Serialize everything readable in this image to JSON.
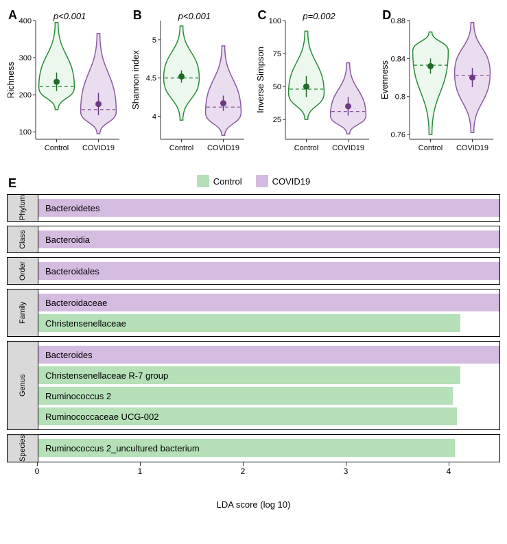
{
  "colors": {
    "control_stroke": "#2a8a3a",
    "control_fill": "#b5e0b8",
    "control_dot": "#1f6b28",
    "covid_stroke": "#8a5aa0",
    "covid_fill": "#d4bce0",
    "covid_dot": "#6b3a85",
    "axis": "#333333",
    "text": "#000000",
    "group_label_bg": "#d9d9d9"
  },
  "typography": {
    "panel_letter_size": 18,
    "axis_label_size": 13,
    "tick_size": 11,
    "pvalue_size": 13
  },
  "violins": [
    {
      "letter": "A",
      "ylabel": "Richness",
      "pvalue": "p<0.001",
      "ylim": [
        80,
        400
      ],
      "yticks": [
        100,
        200,
        300,
        400
      ],
      "categories": [
        "Control",
        "COVID19"
      ],
      "series": [
        {
          "mean": 235,
          "ci": 25,
          "median": 222,
          "range": [
            160,
            395
          ],
          "bulge": 220,
          "color_key": "control"
        },
        {
          "mean": 175,
          "ci": 30,
          "median": 160,
          "range": [
            95,
            365
          ],
          "bulge": 155,
          "color_key": "covid"
        }
      ]
    },
    {
      "letter": "B",
      "ylabel": "Shannon index",
      "pvalue": "p<0.001",
      "ylim": [
        3.7,
        5.25
      ],
      "yticks": [
        4.0,
        4.5,
        5.0
      ],
      "categories": [
        "Control",
        "COVID19"
      ],
      "series": [
        {
          "mean": 4.52,
          "ci": 0.08,
          "median": 4.5,
          "range": [
            3.95,
            5.18
          ],
          "bulge": 4.5,
          "color_key": "control"
        },
        {
          "mean": 4.17,
          "ci": 0.1,
          "median": 4.12,
          "range": [
            3.75,
            4.92
          ],
          "bulge": 4.05,
          "color_key": "covid"
        }
      ]
    },
    {
      "letter": "C",
      "ylabel": "Inverse Simpson",
      "pvalue": "p=0.002",
      "ylim": [
        10,
        100
      ],
      "yticks": [
        25,
        50,
        75,
        100
      ],
      "categories": [
        "Control",
        "COVID19"
      ],
      "series": [
        {
          "mean": 50,
          "ci": 8,
          "median": 48,
          "range": [
            25,
            92
          ],
          "bulge": 45,
          "color_key": "control"
        },
        {
          "mean": 35,
          "ci": 7,
          "median": 31,
          "range": [
            14,
            68
          ],
          "bulge": 28,
          "color_key": "covid"
        }
      ]
    },
    {
      "letter": "D",
      "ylabel": "Evenness",
      "pvalue": "",
      "ylim": [
        0.755,
        0.88
      ],
      "yticks": [
        0.76,
        0.8,
        0.84,
        0.88
      ],
      "categories": [
        "Control",
        "COVID19"
      ],
      "series": [
        {
          "mean": 0.832,
          "ci": 0.008,
          "median": 0.833,
          "range": [
            0.76,
            0.868
          ],
          "bulge": 0.848,
          "color_key": "control"
        },
        {
          "mean": 0.82,
          "ci": 0.01,
          "median": 0.822,
          "range": [
            0.762,
            0.878
          ],
          "bulge": 0.825,
          "color_key": "covid"
        }
      ]
    }
  ],
  "legend": {
    "items": [
      {
        "label": "Control",
        "color_key": "control"
      },
      {
        "label": "COVID19",
        "color_key": "covid"
      }
    ]
  },
  "lda": {
    "letter": "E",
    "xlabel": "LDA score (log 10)",
    "xlim": [
      0,
      4.5
    ],
    "xticks": [
      0,
      1,
      2,
      3,
      4
    ],
    "groups": [
      {
        "label": "Phylum",
        "bars": [
          {
            "name": "Bacteroidetes",
            "value": 4.45,
            "color_key": "covid"
          }
        ]
      },
      {
        "label": "Class",
        "bars": [
          {
            "name": "Bacteroidia",
            "value": 4.45,
            "color_key": "covid"
          }
        ]
      },
      {
        "label": "Order",
        "bars": [
          {
            "name": "Bacteroidales",
            "value": 4.45,
            "color_key": "covid"
          }
        ]
      },
      {
        "label": "Family",
        "bars": [
          {
            "name": "Bacteroidaceae",
            "value": 4.45,
            "color_key": "covid"
          },
          {
            "name": "Christensenellaceae",
            "value": 4.05,
            "color_key": "control"
          }
        ]
      },
      {
        "label": "Genus",
        "bars": [
          {
            "name": "Bacteroides",
            "value": 4.45,
            "color_key": "covid"
          },
          {
            "name": "Christensenellaceae R-7 group",
            "value": 4.05,
            "color_key": "control"
          },
          {
            "name": "Ruminococcus 2",
            "value": 3.98,
            "color_key": "control"
          },
          {
            "name": "Ruminococcaceae UCG-002",
            "value": 4.02,
            "color_key": "control"
          }
        ]
      },
      {
        "label": "Species",
        "bars": [
          {
            "name": "Ruminococcus 2_uncultured bacterium",
            "value": 4.0,
            "color_key": "control"
          }
        ]
      }
    ]
  }
}
